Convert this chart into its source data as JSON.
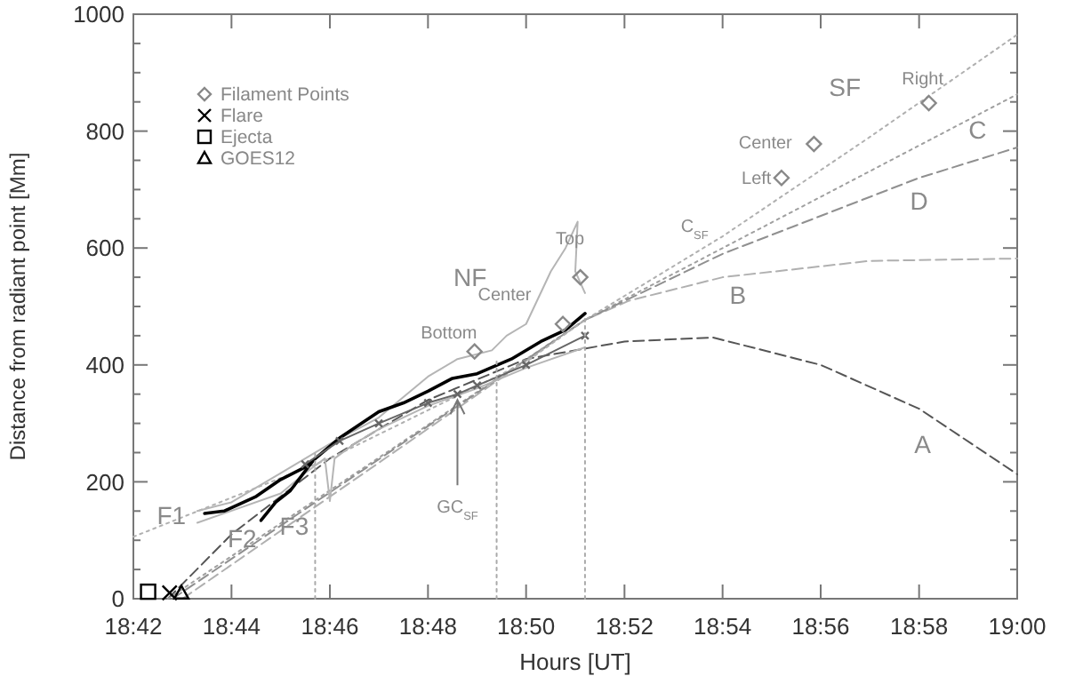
{
  "chart_data": {
    "type": "line",
    "xlabel": "Hours [UT]",
    "ylabel": "Distance from radiant point [Mm]",
    "xlim": [
      18.7,
      19.0
    ],
    "ylim": [
      0,
      1000
    ],
    "xticks": [
      {
        "value": 18.7,
        "label": "18:42"
      },
      {
        "value": 18.7333,
        "label": "18:44"
      },
      {
        "value": 18.7667,
        "label": "18:46"
      },
      {
        "value": 18.8,
        "label": "18:48"
      },
      {
        "value": 18.8333,
        "label": "18:50"
      },
      {
        "value": 18.8667,
        "label": "18:52"
      },
      {
        "value": 18.9,
        "label": "18:54"
      },
      {
        "value": 18.9333,
        "label": "18:56"
      },
      {
        "value": 18.9667,
        "label": "18:58"
      },
      {
        "value": 19.0,
        "label": "19:00"
      }
    ],
    "yticks": [
      0,
      {
        "value": 50,
        "label": null
      },
      {
        "value": 100,
        "label": null
      },
      {
        "value": 150,
        "label": null
      },
      200,
      {
        "value": 250,
        "label": null
      },
      {
        "value": 300,
        "label": null
      },
      {
        "value": 350,
        "label": null
      },
      400,
      {
        "value": 450,
        "label": null
      },
      {
        "value": 500,
        "label": null
      },
      {
        "value": 550,
        "label": null
      },
      600,
      {
        "value": 650,
        "label": null
      },
      {
        "value": 700,
        "label": null
      },
      {
        "value": 750,
        "label": null
      },
      800,
      {
        "value": 850,
        "label": null
      },
      {
        "value": 900,
        "label": null
      },
      {
        "value": 950,
        "label": null
      },
      1000
    ],
    "grid": false,
    "legend": "top left",
    "marker": "none",
    "line_style": "solid",
    "series": [
      {
        "color": "#555555",
        "line_style": "dashed",
        "x": [
          18.7117,
          18.7333,
          18.7667,
          18.8,
          18.8333,
          18.8667,
          18.8967,
          18.9333,
          18.9667,
          19.0
        ],
        "values": [
          0,
          110,
          240,
          340,
          410,
          440,
          447,
          400,
          325,
          213
        ]
      },
      {
        "color": "#b0b0b0",
        "line_style": "dashed",
        "x": [
          18.7167,
          18.8533,
          18.8683,
          18.9,
          18.95,
          19.0
        ],
        "values": [
          0,
          477,
          510,
          550,
          578,
          582
        ]
      },
      {
        "color": "#a0a0a0",
        "line_style": "dotted",
        "x": [
          18.7117,
          18.8533,
          19.0
        ],
        "values": [
          0,
          477,
          863
        ]
      },
      {
        "color": "#909090",
        "line_style": "dashed",
        "x": [
          18.7133,
          18.8533,
          18.9,
          18.9667,
          19.0
        ],
        "values": [
          0,
          477,
          590,
          720,
          772
        ]
      },
      {
        "color": "#b0b0b0",
        "line_style": "dotted",
        "x": [
          18.7,
          18.7667,
          18.8333,
          18.8533,
          18.9,
          18.95,
          19.0
        ],
        "values": [
          106,
          240,
          405,
          477,
          620,
          790,
          965
        ]
      },
      {
        "color": "#b5b5b5",
        "x": [
          18.7217,
          18.7333,
          18.75,
          18.7667,
          18.7833,
          18.8,
          18.81,
          18.8217,
          18.8267,
          18.8333,
          18.8417,
          18.8467,
          18.8508,
          18.85,
          18.8533
        ],
        "values": [
          150,
          165,
          215,
          265,
          310,
          380,
          410,
          425,
          450,
          470,
          560,
          600,
          645,
          560,
          523
        ]
      },
      {
        "color": "#b5b5b5",
        "x": [
          18.7217,
          18.75,
          18.7583,
          18.765,
          18.7667,
          18.7683,
          18.775,
          18.7833,
          18.8,
          18.8167,
          18.8333,
          18.8533
        ],
        "values": [
          130,
          180,
          215,
          240,
          167,
          240,
          265,
          290,
          330,
          360,
          395,
          430
        ]
      },
      {
        "color": "#000000",
        "x": [
          18.7242,
          18.7308,
          18.7417,
          18.75,
          18.7583,
          18.77,
          18.7833,
          18.7917,
          18.8,
          18.8083,
          18.8167,
          18.8283,
          18.8383,
          18.8467,
          18.8533
        ],
        "values": [
          146,
          150,
          175,
          204,
          225,
          275,
          320,
          335,
          355,
          377,
          385,
          410,
          440,
          460,
          488
        ]
      },
      {
        "color": "#000000",
        "x": [
          18.7433,
          18.7483,
          18.7533,
          18.7608
        ],
        "values": [
          134,
          165,
          185,
          235
        ]
      },
      {
        "color": "#666666",
        "marker": "cross",
        "x": [
          18.7583,
          18.77,
          18.7833,
          18.8,
          18.81,
          18.8167,
          18.8333,
          18.8533
        ],
        "values": [
          230,
          270,
          300,
          335,
          350,
          365,
          400,
          450
        ]
      },
      {
        "color": "#aaaaaa",
        "line_style": "dotted",
        "x": [
          18.7617,
          18.7617
        ],
        "values": [
          0,
          255
        ]
      },
      {
        "color": "#aaaaaa",
        "line_style": "dotted",
        "x": [
          18.8233,
          18.8233
        ],
        "values": [
          0,
          411
        ]
      },
      {
        "color": "#aaaaaa",
        "line_style": "dotted",
        "x": [
          18.8533,
          18.8533
        ],
        "values": [
          0,
          483
        ]
      },
      {
        "type": "scatter",
        "name": "Filament Points",
        "color": "#888888",
        "marker": "diamond",
        "x": [
          18.8158,
          18.8458,
          18.8517,
          18.92,
          18.931,
          18.97
        ],
        "values": [
          423,
          470,
          550,
          720,
          778,
          848
        ]
      },
      {
        "type": "scatter",
        "name": "Flare",
        "color": "#000000",
        "marker": "cross",
        "x": [
          18.7123
        ],
        "values": [
          10
        ]
      },
      {
        "type": "scatter",
        "name": "Ejecta",
        "color": "#000000",
        "marker": "square",
        "x": [
          18.705
        ],
        "values": [
          12
        ]
      },
      {
        "type": "scatter",
        "name": "GOES12",
        "color": "#000000",
        "marker": "triangle",
        "x": [
          18.7163
        ],
        "values": [
          10
        ]
      }
    ],
    "annotations": [
      "F1",
      "F2",
      "F3",
      {
        "text": "GC$_{SF}$",
        "x": 18.81,
        "y": 340
      },
      "NF",
      "SF",
      "C$_{SF}$",
      "A",
      "B",
      "C",
      "D",
      "Bottom",
      "Center",
      "Top",
      "Left",
      "Center",
      "Right"
    ]
  }
}
